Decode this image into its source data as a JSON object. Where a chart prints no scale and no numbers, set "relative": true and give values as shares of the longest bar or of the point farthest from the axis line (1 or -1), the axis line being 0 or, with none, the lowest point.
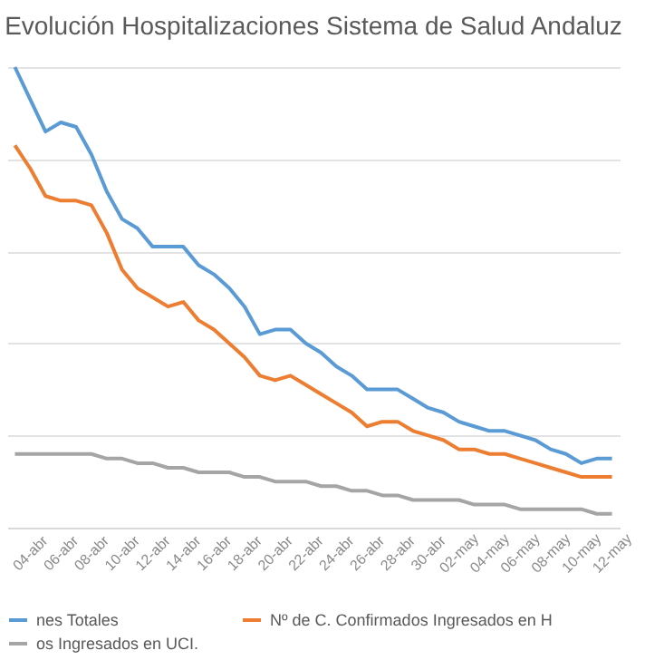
{
  "chart_data": {
    "type": "line",
    "title": "Evolución Hospitalizaciones Sistema de Salud Andaluz",
    "relative": true,
    "grid": "y",
    "legend": "bottom",
    "categories": [
      null,
      "04-abr",
      null,
      "06-abr",
      null,
      "08-abr",
      null,
      "10-abr",
      null,
      "12-abr",
      null,
      "14-abr",
      null,
      "16-abr",
      null,
      "18-abr",
      null,
      "20-abr",
      null,
      "22-abr",
      null,
      "24-abr",
      null,
      "26-abr",
      null,
      "28-abr",
      null,
      "30-abr",
      null,
      "02-may",
      null,
      "04-may",
      null,
      "06-may",
      null,
      "08-may",
      null,
      "10-may",
      null,
      "12-may"
    ],
    "series": [
      {
        "name": "nes Totales",
        "color": "#5b9bd5",
        "values": [
          1.0,
          0.93,
          0.86,
          0.88,
          0.87,
          0.81,
          0.73,
          0.67,
          0.65,
          0.61,
          0.61,
          0.61,
          0.57,
          0.55,
          0.52,
          0.48,
          0.42,
          0.43,
          0.43,
          0.4,
          0.38,
          0.35,
          0.33,
          0.3,
          0.3,
          0.3,
          0.28,
          0.26,
          0.25,
          0.23,
          0.22,
          0.21,
          0.21,
          0.2,
          0.19,
          0.17,
          0.16,
          0.14,
          0.15,
          0.15
        ]
      },
      {
        "name": "Nº de C. Confirmados Ingresados en H",
        "color": "#ed7d31",
        "values": [
          0.83,
          0.78,
          0.72,
          0.71,
          0.71,
          0.7,
          0.64,
          0.56,
          0.52,
          0.5,
          0.48,
          0.49,
          0.45,
          0.43,
          0.4,
          0.37,
          0.33,
          0.32,
          0.33,
          0.31,
          0.29,
          0.27,
          0.25,
          0.22,
          0.23,
          0.23,
          0.21,
          0.2,
          0.19,
          0.17,
          0.17,
          0.16,
          0.16,
          0.15,
          0.14,
          0.13,
          0.12,
          0.11,
          0.11,
          0.11
        ]
      },
      {
        "name": "os Ingresados en UCI.",
        "color": "#a5a5a5",
        "values": [
          0.16,
          0.16,
          0.16,
          0.16,
          0.16,
          0.16,
          0.15,
          0.15,
          0.14,
          0.14,
          0.13,
          0.13,
          0.12,
          0.12,
          0.12,
          0.11,
          0.11,
          0.1,
          0.1,
          0.1,
          0.09,
          0.09,
          0.08,
          0.08,
          0.07,
          0.07,
          0.06,
          0.06,
          0.06,
          0.06,
          0.05,
          0.05,
          0.05,
          0.04,
          0.04,
          0.04,
          0.04,
          0.04,
          0.03,
          0.03
        ]
      }
    ]
  }
}
